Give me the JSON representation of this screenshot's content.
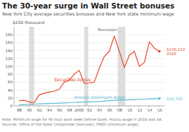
{
  "chart_data": {
    "type": "line",
    "title": "The 30-year surge in Wall Street bonuses",
    "subtitle": "New York City average securities bonuses and New York state minimum wage",
    "ylabel": "$200 thousand",
    "note": "Note: Minimum wage for 40 hour work week before taxes. Hourly wage in 2016 was $9.\nSources: Office of the State Comptroller (bonuses), FRED (minimum wage).",
    "x": [
      1988,
      1989,
      1990,
      1991,
      1992,
      1993,
      1994,
      1995,
      1996,
      1997,
      1998,
      1999,
      2000,
      2001,
      2002,
      2003,
      2004,
      2005,
      2006,
      2007,
      2008,
      2009,
      2010,
      2011,
      2012,
      2013,
      2014,
      2015,
      2016
    ],
    "series": [
      {
        "name": "Securities bonus",
        "color": "#e8472a",
        "end_label": "$138,210\n2016",
        "values": [
          13,
          14,
          10,
          8,
          28,
          32,
          35,
          37,
          42,
          60,
          65,
          80,
          90,
          57,
          58,
          60,
          95,
          125,
          138,
          177,
          138,
          97,
          128,
          138,
          100,
          110,
          162,
          146,
          138
        ]
      },
      {
        "name": "Annual minimum wage",
        "color": "#5bbcd6",
        "end_label": "$18,720",
        "values": [
          3,
          3.5,
          4,
          4.5,
          5,
          5.5,
          6,
          6.5,
          7,
          7.5,
          8,
          8.5,
          9,
          9.5,
          10,
          10.5,
          11,
          12,
          13,
          14,
          15,
          15,
          15.5,
          16,
          16.5,
          17,
          17.5,
          18,
          18.72
        ]
      }
    ],
    "recession_label": "Recession",
    "recession_bands": [
      [
        1990,
        1991
      ],
      [
        2001,
        2001.8
      ],
      [
        2007.7,
        2009.2
      ]
    ],
    "xlim": [
      1987,
      2017
    ],
    "xticks": [
      {
        "value": 1988,
        "label": "'88"
      },
      {
        "value": 1990,
        "label": "'90"
      },
      {
        "value": 1992,
        "label": "'92"
      },
      {
        "value": 1994,
        "label": "'94"
      },
      {
        "value": 1996,
        "label": "'96"
      },
      {
        "value": 1998,
        "label": "'98"
      },
      {
        "value": 2000,
        "label": "2000"
      },
      {
        "value": 2002,
        "label": "'02"
      },
      {
        "value": 2004,
        "label": "'04"
      },
      {
        "value": 2006,
        "label": "'06"
      },
      {
        "value": 2008,
        "label": "'08"
      },
      {
        "value": 2010,
        "label": "'10"
      },
      {
        "value": 2012,
        "label": "'12"
      },
      {
        "value": 2014,
        "label": "'14"
      },
      {
        "value": 2016,
        "label": "'16"
      }
    ],
    "ylim": [
      0,
      200
    ],
    "yticks": [
      0,
      20,
      40,
      60,
      80,
      100,
      120,
      140,
      160,
      180
    ],
    "grid": true
  }
}
